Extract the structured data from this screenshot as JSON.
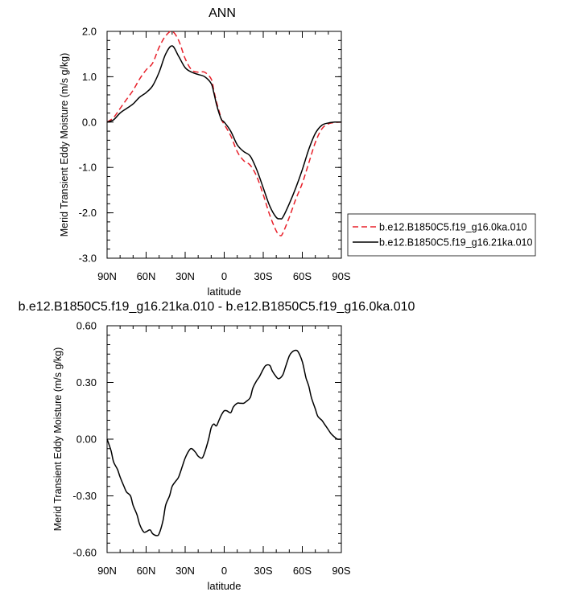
{
  "chart_data": [
    {
      "type": "line",
      "title": "ANN",
      "xlabel": "latitude",
      "ylabel": "Merid Transient Eddy Moisture (m/s g/kg)",
      "xlim": [
        90,
        -90
      ],
      "ylim": [
        -3.0,
        2.0
      ],
      "xticks": [
        {
          "value": 90,
          "label": "90N"
        },
        {
          "value": 60,
          "label": "60N"
        },
        {
          "value": 30,
          "label": "30N"
        },
        {
          "value": 0,
          "label": "0"
        },
        {
          "value": -30,
          "label": "30S"
        },
        {
          "value": -60,
          "label": "60S"
        },
        {
          "value": -90,
          "label": "90S"
        }
      ],
      "yticks": [
        {
          "value": 2.0,
          "label": "2.0"
        },
        {
          "value": 1.0,
          "label": "1.0"
        },
        {
          "value": 0.0,
          "label": "0.0"
        },
        {
          "value": -1.0,
          "label": "-1.0"
        },
        {
          "value": -2.0,
          "label": "-2.0"
        },
        {
          "value": -3.0,
          "label": "-3.0"
        }
      ],
      "legend_position": "right",
      "series": [
        {
          "name": "b.e12.B1850C5.f19_g16.0ka.010",
          "color": "#e8202a",
          "dash": "dashed",
          "x": [
            90,
            85,
            80,
            75,
            70,
            65,
            60,
            55,
            50,
            45,
            40,
            35,
            30,
            25,
            20,
            15,
            10,
            8,
            6,
            4,
            2,
            0,
            -5,
            -10,
            -15,
            -20,
            -25,
            -30,
            -35,
            -40,
            -43,
            -45,
            -50,
            -55,
            -60,
            -65,
            -70,
            -75,
            -80,
            -85,
            -90
          ],
          "y": [
            0.0,
            0.1,
            0.3,
            0.5,
            0.7,
            0.95,
            1.15,
            1.3,
            1.65,
            1.9,
            2.0,
            1.8,
            1.4,
            1.15,
            1.1,
            1.1,
            0.95,
            0.7,
            0.45,
            0.25,
            0.05,
            -0.05,
            -0.3,
            -0.65,
            -0.85,
            -0.95,
            -1.2,
            -1.6,
            -2.05,
            -2.4,
            -2.5,
            -2.45,
            -2.1,
            -1.7,
            -1.35,
            -0.9,
            -0.45,
            -0.15,
            -0.04,
            -0.01,
            0.0
          ]
        },
        {
          "name": "b.e12.B1850C5.f19_g16.21ka.010",
          "color": "#000000",
          "dash": "solid",
          "x": [
            90,
            85,
            80,
            75,
            70,
            65,
            60,
            55,
            50,
            45,
            40,
            35,
            30,
            25,
            20,
            15,
            10,
            8,
            6,
            4,
            2,
            0,
            -5,
            -10,
            -15,
            -20,
            -25,
            -30,
            -35,
            -40,
            -43,
            -45,
            -50,
            -55,
            -60,
            -65,
            -70,
            -75,
            -80,
            -85,
            -90
          ],
          "y": [
            0.0,
            0.05,
            0.2,
            0.3,
            0.4,
            0.55,
            0.65,
            0.8,
            1.1,
            1.5,
            1.68,
            1.45,
            1.2,
            1.1,
            1.05,
            1.0,
            0.85,
            0.65,
            0.4,
            0.2,
            0.05,
            0.0,
            -0.2,
            -0.5,
            -0.65,
            -0.75,
            -1.05,
            -1.45,
            -1.85,
            -2.1,
            -2.13,
            -2.1,
            -1.8,
            -1.45,
            -1.05,
            -0.6,
            -0.25,
            -0.07,
            -0.02,
            0.0,
            0.0
          ]
        }
      ]
    },
    {
      "type": "line",
      "title": "b.e12.B1850C5.f19_g16.21ka.010 - b.e12.B1850C5.f19_g16.0ka.010",
      "xlabel": "latitude",
      "ylabel": "Merid Transient Eddy Moisture (m/s g/kg)",
      "xlim": [
        90,
        -90
      ],
      "ylim": [
        -0.6,
        0.6
      ],
      "xticks": [
        {
          "value": 90,
          "label": "90N"
        },
        {
          "value": 60,
          "label": "60N"
        },
        {
          "value": 30,
          "label": "30N"
        },
        {
          "value": 0,
          "label": "0"
        },
        {
          "value": -30,
          "label": "30S"
        },
        {
          "value": -60,
          "label": "60S"
        },
        {
          "value": -90,
          "label": "90S"
        }
      ],
      "yticks": [
        {
          "value": 0.6,
          "label": "0.60"
        },
        {
          "value": 0.3,
          "label": "0.30"
        },
        {
          "value": 0.0,
          "label": "0.00"
        },
        {
          "value": -0.3,
          "label": "-0.30"
        },
        {
          "value": -0.6,
          "label": "-0.60"
        }
      ],
      "series": [
        {
          "name": "",
          "color": "#000000",
          "dash": "solid",
          "x": [
            90,
            87,
            85,
            82,
            80,
            77,
            75,
            72,
            70,
            67,
            65,
            62,
            60,
            57,
            55,
            52,
            50,
            47,
            45,
            42,
            40,
            37,
            35,
            32,
            30,
            27,
            25,
            22,
            20,
            17,
            15,
            12,
            10,
            8,
            6,
            4,
            2,
            0,
            -2,
            -5,
            -7,
            -10,
            -12,
            -15,
            -17,
            -20,
            -22,
            -25,
            -27,
            -30,
            -32,
            -35,
            -37,
            -40,
            -42,
            -45,
            -47,
            -50,
            -52,
            -55,
            -57,
            -60,
            -62,
            -63,
            -65,
            -67,
            -70,
            -72,
            -75,
            -77,
            -80,
            -82,
            -85,
            -87,
            -90
          ],
          "y": [
            0.0,
            -0.06,
            -0.12,
            -0.16,
            -0.2,
            -0.25,
            -0.28,
            -0.3,
            -0.35,
            -0.4,
            -0.45,
            -0.49,
            -0.49,
            -0.48,
            -0.5,
            -0.51,
            -0.5,
            -0.43,
            -0.35,
            -0.3,
            -0.25,
            -0.22,
            -0.2,
            -0.14,
            -0.1,
            -0.06,
            -0.05,
            -0.07,
            -0.09,
            -0.1,
            -0.07,
            0.0,
            0.06,
            0.08,
            0.07,
            0.1,
            0.13,
            0.15,
            0.15,
            0.14,
            0.17,
            0.19,
            0.19,
            0.19,
            0.2,
            0.22,
            0.27,
            0.31,
            0.33,
            0.37,
            0.39,
            0.39,
            0.36,
            0.33,
            0.32,
            0.34,
            0.38,
            0.44,
            0.46,
            0.47,
            0.46,
            0.41,
            0.35,
            0.32,
            0.28,
            0.22,
            0.16,
            0.12,
            0.1,
            0.08,
            0.05,
            0.03,
            0.01,
            0.0,
            0.0
          ]
        }
      ]
    }
  ]
}
